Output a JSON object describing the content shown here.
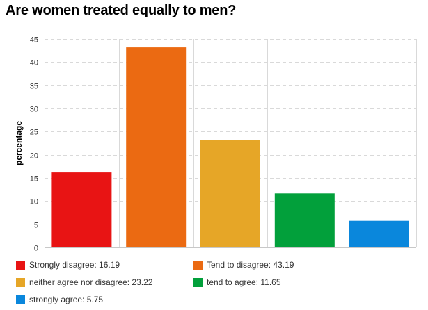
{
  "page": {
    "title": "Are women treated equally to men?"
  },
  "chart_data": {
    "type": "bar",
    "title": "Are women treated equally to men?",
    "xlabel": "",
    "ylabel": "percentage",
    "ylim": [
      0,
      45
    ],
    "yticks": [
      0,
      5,
      10,
      15,
      20,
      25,
      30,
      35,
      40,
      45
    ],
    "grid": true,
    "legend_position": "bottom",
    "categories": [
      "Strongly disagree",
      "Tend to disagree",
      "neither agree nor disagree",
      "tend to agree",
      "strongly agree"
    ],
    "values": [
      16.19,
      43.19,
      23.22,
      11.65,
      5.75
    ],
    "colors": [
      "#e81414",
      "#eb6a12",
      "#e6a627",
      "#02a03b",
      "#0a87dc"
    ]
  },
  "legend": [
    {
      "label": "Strongly disagree: 16.19",
      "color": "#e81414"
    },
    {
      "label": "Tend to disagree: 43.19",
      "color": "#eb6a12"
    },
    {
      "label": "neither agree nor disagree: 23.22",
      "color": "#e6a627"
    },
    {
      "label": "tend to agree: 11.65",
      "color": "#02a03b"
    },
    {
      "label": "strongly agree: 5.75",
      "color": "#0a87dc"
    }
  ]
}
